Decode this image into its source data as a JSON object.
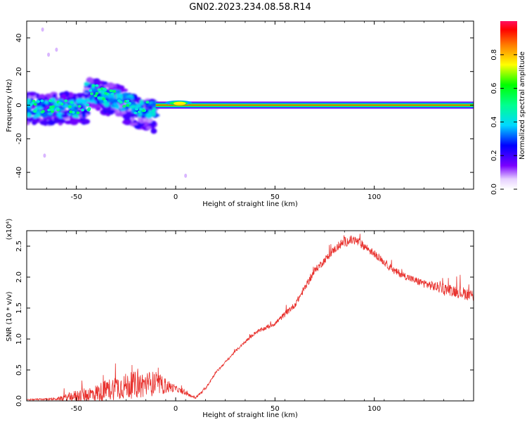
{
  "title": "GN02.2023.234.08.58.R14",
  "chart_data": [
    {
      "type": "heatmap",
      "xlabel": "Height of straight line (km)",
      "ylabel": "Frequency (Hz)",
      "xlim": [
        -75,
        150
      ],
      "ylim": [
        -50,
        50
      ],
      "x_ticks": [
        -50,
        0,
        50,
        100
      ],
      "y_ticks": [
        -40,
        -20,
        0,
        20,
        40
      ],
      "grid": false,
      "colorbar": {
        "label": "Normalized spectral amplitude",
        "range": [
          0.0,
          1.0
        ],
        "ticks": [
          0.0,
          0.2,
          0.4,
          0.6,
          0.8
        ],
        "tick_labels": [
          "0.0",
          "0.2",
          "0.4",
          "0.6",
          "0.8"
        ],
        "colormap": "rainbow"
      },
      "features": [
        {
          "x_range": [
            -75,
            -10
          ],
          "frequency_range": [
            -15,
            15
          ],
          "amplitude": 0.3,
          "description": "scattered"
        },
        {
          "x_range": [
            -10,
            150
          ],
          "frequency": 0,
          "amplitude": 0.95,
          "description": "carrier line"
        }
      ]
    },
    {
      "type": "line",
      "xlabel": "Height of straight line (km)",
      "ylabel": "SNR (10 * v/v)",
      "y_multiplier": "(x10⁴)",
      "xlim": [
        -75,
        150
      ],
      "ylim": [
        0,
        2.75
      ],
      "x_ticks": [
        -50,
        0,
        50,
        100
      ],
      "y_ticks": [
        0.0,
        0.5,
        1.0,
        1.5,
        2.0,
        2.5
      ],
      "y_tick_labels": [
        "0.0",
        "0.5",
        "1.0",
        "1.5",
        "2.0",
        "2.5"
      ],
      "grid": false,
      "series": [
        {
          "color": "#e8302c",
          "x": [
            -75,
            -60,
            -50,
            -40,
            -30,
            -20,
            -10,
            0,
            5,
            10,
            15,
            20,
            30,
            40,
            50,
            60,
            70,
            80,
            85,
            90,
            95,
            100,
            110,
            120,
            130,
            140,
            150
          ],
          "y": [
            0.02,
            0.03,
            0.08,
            0.12,
            0.22,
            0.26,
            0.28,
            0.2,
            0.12,
            0.05,
            0.2,
            0.45,
            0.8,
            1.1,
            1.25,
            1.55,
            2.1,
            2.45,
            2.57,
            2.6,
            2.5,
            2.38,
            2.1,
            1.95,
            1.85,
            1.78,
            1.7
          ],
          "noise": [
            0.01,
            0.02,
            0.1,
            0.15,
            0.2,
            0.22,
            0.2,
            0.05,
            0.03,
            0.02,
            0.02,
            0.02,
            0.02,
            0.03,
            0.04,
            0.05,
            0.06,
            0.06,
            0.08,
            0.08,
            0.07,
            0.06,
            0.06,
            0.06,
            0.08,
            0.1,
            0.1
          ]
        }
      ]
    }
  ]
}
